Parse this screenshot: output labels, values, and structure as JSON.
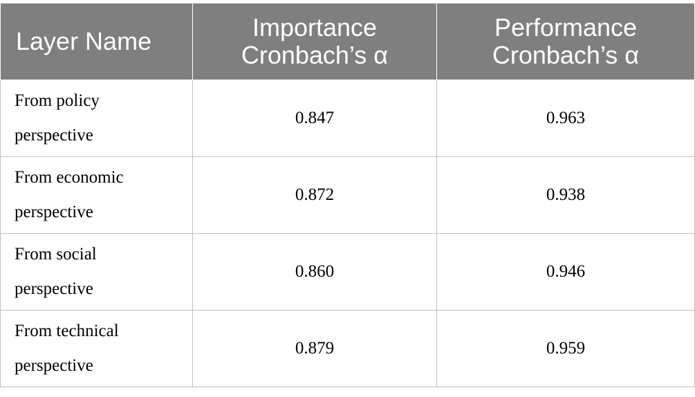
{
  "table": {
    "headers": {
      "layer_name": "Layer Name",
      "importance_line1": "Importance",
      "importance_line2": "Cronbach’s α",
      "performance_line1": "Performance",
      "performance_line2": "Cronbach’s α"
    },
    "rows": [
      {
        "label_line1": "From policy",
        "label_line2": "perspective",
        "importance": "0.847",
        "performance": "0.963"
      },
      {
        "label_line1": "From economic",
        "label_line2": "perspective",
        "importance": "0.872",
        "performance": "0.938"
      },
      {
        "label_line1": "From social",
        "label_line2": "perspective",
        "importance": "0.860",
        "performance": "0.946"
      },
      {
        "label_line1": "From technical",
        "label_line2": "perspective",
        "importance": "0.879",
        "performance": "0.959"
      }
    ]
  }
}
